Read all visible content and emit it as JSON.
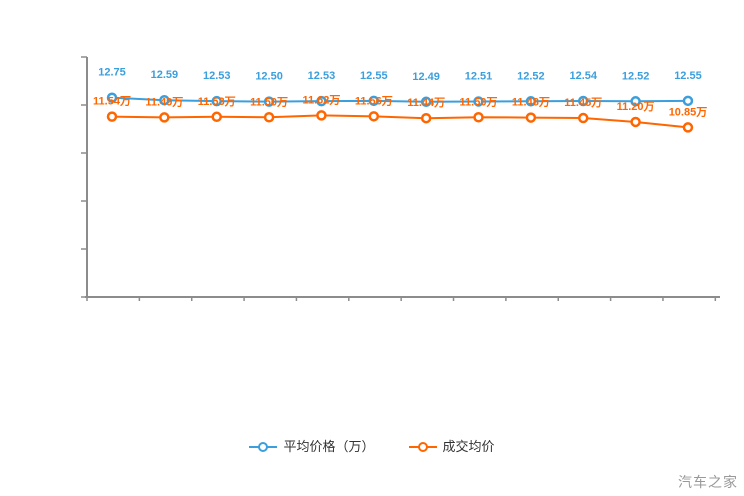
{
  "page": {
    "background_color": "#ffffff",
    "watermark_text": "汽车之家"
  },
  "legend": {
    "position": "bottom-center",
    "items": [
      {
        "label": "平均价格（万）",
        "color": "#3b9fdd",
        "icon": "line-with-circle-marker"
      },
      {
        "label": "成交均价",
        "color": "#ff6600",
        "icon": "line-with-circle-marker"
      }
    ]
  },
  "chart_data": {
    "type": "line",
    "title": "",
    "xlabel": "",
    "ylabel": "",
    "grid": false,
    "axis_tick_labels_visible": false,
    "ylim": [
      0,
      15.3
    ],
    "x_point_count": 12,
    "legend_position": "bottom-center",
    "series": [
      {
        "name": "平均价格（万）",
        "color": "#3b9fdd",
        "marker": "circle-white-center",
        "values": [
          12.75,
          12.59,
          12.53,
          12.5,
          12.53,
          12.55,
          12.49,
          12.51,
          12.52,
          12.54,
          12.52,
          12.55
        ],
        "labels": [
          "12.75",
          "12.59",
          "12.53",
          "12.50",
          "12.53",
          "12.55",
          "12.49",
          "12.51",
          "12.52",
          "12.54",
          "12.52",
          "12.55"
        ]
      },
      {
        "name": "成交均价",
        "color": "#ff6600",
        "marker": "circle-white-center",
        "values": [
          11.54,
          11.49,
          11.53,
          11.5,
          11.62,
          11.56,
          11.44,
          11.5,
          11.48,
          11.45,
          11.2,
          10.85
        ],
        "labels": [
          "11.54万",
          "11.49万",
          "11.53万",
          "11.50万",
          "11.62万",
          "11.56万",
          "11.44万",
          "11.50万",
          "11.48万",
          "11.45万",
          "11.20万",
          "10.85万"
        ]
      }
    ]
  }
}
